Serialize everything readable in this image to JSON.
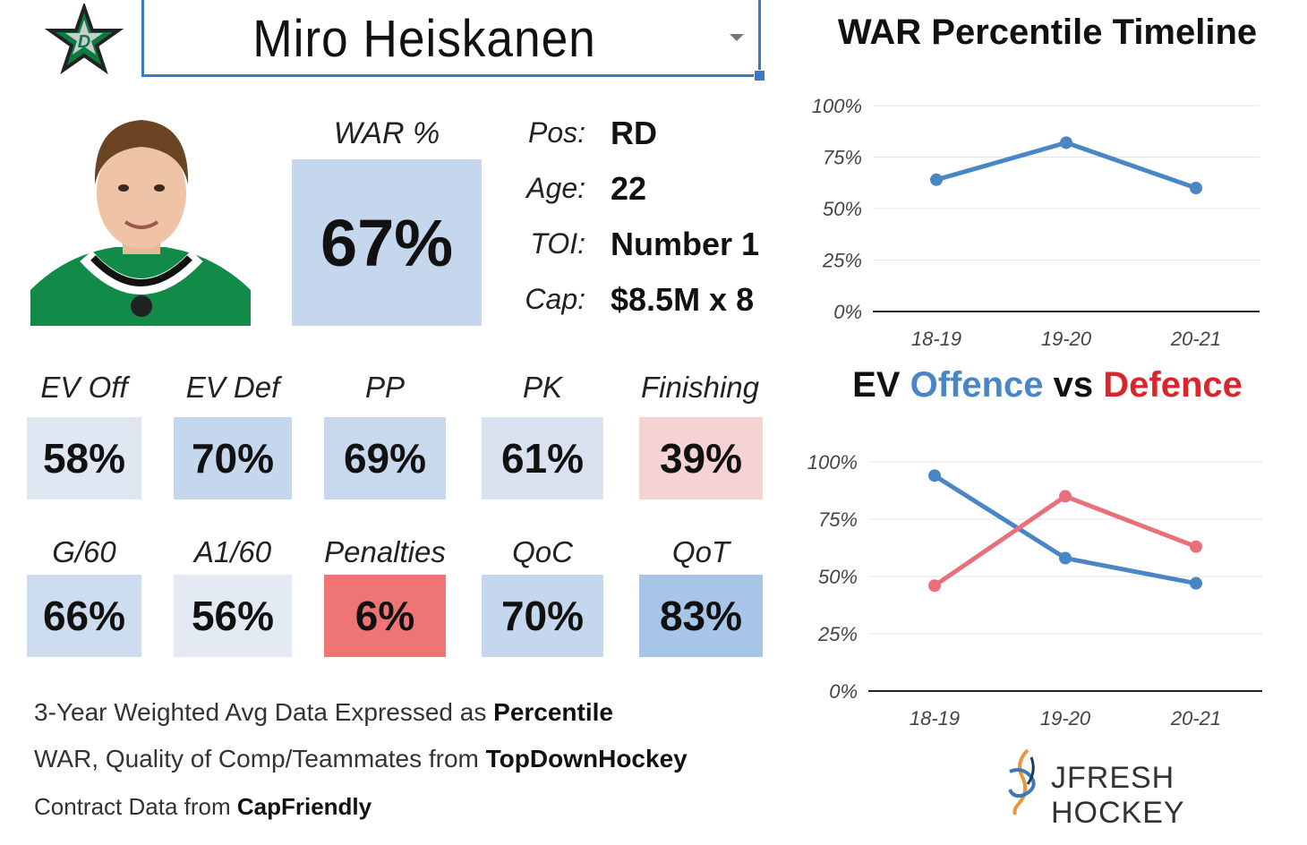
{
  "player": {
    "name": "Miro Heiskanen",
    "war_label": "WAR %",
    "war_value": "67%"
  },
  "info": [
    {
      "label": "Pos:",
      "value": "RD"
    },
    {
      "label": "Age:",
      "value": "22"
    },
    {
      "label": "TOI:",
      "value": "Number 1"
    },
    {
      "label": "Cap:",
      "value": "$8.5M x 8"
    }
  ],
  "stats_row1": [
    {
      "label": "EV Off",
      "value": "58%",
      "color": "#dfe7f2"
    },
    {
      "label": "EV Def",
      "value": "70%",
      "color": "#c5d7ec"
    },
    {
      "label": "PP",
      "value": "69%",
      "color": "#c8d9ee"
    },
    {
      "label": "PK",
      "value": "61%",
      "color": "#d9e3f0"
    },
    {
      "label": "Finishing",
      "value": "39%",
      "color": "#f5d3d3"
    }
  ],
  "stats_row2": [
    {
      "label": "G/60",
      "value": "66%",
      "color": "#cddcee"
    },
    {
      "label": "A1/60",
      "value": "56%",
      "color": "#e3eaf3"
    },
    {
      "label": "Penalties",
      "value": "6%",
      "color": "#ef7474"
    },
    {
      "label": "QoC",
      "value": "70%",
      "color": "#c5d7ec"
    },
    {
      "label": "QoT",
      "value": "83%",
      "color": "#a7c5e6"
    }
  ],
  "footer": {
    "line1_text": "3-Year Weighted Avg Data Expressed as ",
    "line1_bold": "Percentile",
    "line2_text": "WAR, Quality of Comp/Teammates from ",
    "line2_bold": "TopDownHockey",
    "line3_text": "Contract Data from ",
    "line3_bold": "CapFriendly"
  },
  "brand": {
    "text": "JFRESH HOCKEY"
  },
  "chart_data": [
    {
      "type": "line",
      "title": "WAR Percentile Timeline",
      "categories": [
        "18-19",
        "19-20",
        "20-21"
      ],
      "series": [
        {
          "name": "WAR",
          "values": [
            64,
            82,
            60
          ],
          "color": "#4a86c5"
        }
      ],
      "ylim": [
        0,
        100
      ],
      "yticks": [
        "0%",
        "25%",
        "50%",
        "75%",
        "100%"
      ],
      "grid": true
    },
    {
      "type": "line",
      "title_parts": [
        {
          "text": "EV ",
          "color": "#111111"
        },
        {
          "text": "Offence",
          "color": "#4a86c5"
        },
        {
          "text": " vs ",
          "color": "#111111"
        },
        {
          "text": "Defence",
          "color": "#d9262c"
        }
      ],
      "categories": [
        "18-19",
        "19-20",
        "20-21"
      ],
      "series": [
        {
          "name": "Offence",
          "values": [
            94,
            58,
            47
          ],
          "color": "#4a86c5"
        },
        {
          "name": "Defence",
          "values": [
            46,
            85,
            63
          ],
          "color": "#e8707a"
        }
      ],
      "ylim": [
        0,
        100
      ],
      "yticks": [
        "0%",
        "25%",
        "50%",
        "75%",
        "100%"
      ],
      "grid": true
    }
  ],
  "colors": {
    "accent_blue": "#3b78c6",
    "dallas_green": "#0b7a3e"
  }
}
